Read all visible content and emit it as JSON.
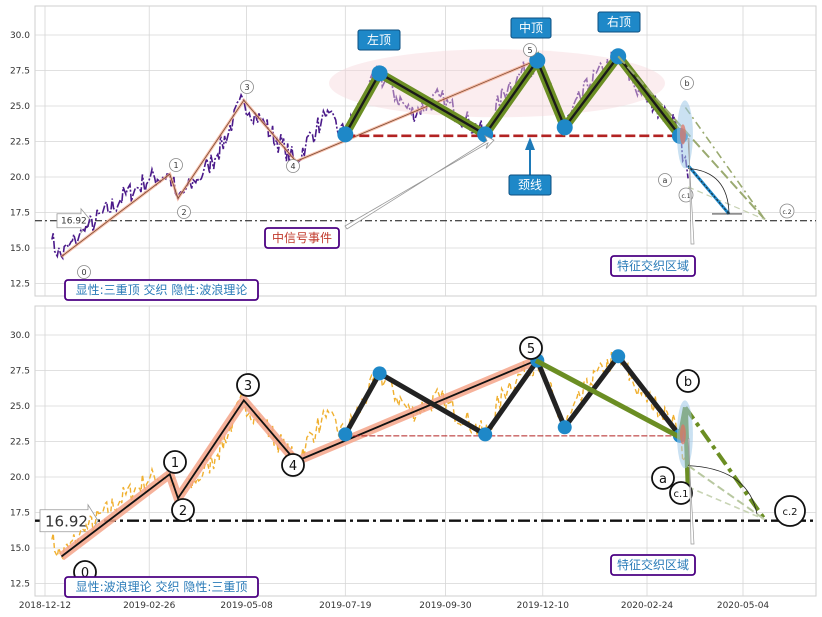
{
  "chart_data": [
    {
      "type": "line",
      "panel": "top",
      "ylim": [
        11.5,
        32
      ],
      "yticks": [
        "12.5",
        "15.0",
        "17.5",
        "20.0",
        "22.5",
        "25.0",
        "27.5",
        "30.0"
      ],
      "series": [],
      "wave_points": [
        {
          "label": "0",
          "date": "2018-12-24",
          "value": 14.4
        },
        {
          "label": "1",
          "date": "2019-03-13",
          "value": 20.2
        },
        {
          "label": "2",
          "date": "2019-03-19",
          "value": 18.5
        },
        {
          "label": "3",
          "date": "2019-05-06",
          "value": 25.4
        },
        {
          "label": "4",
          "date": "2019-06-13",
          "value": 21.1
        },
        {
          "label": "5",
          "date": "2019-12-05",
          "value": 28.2
        },
        {
          "label": "a",
          "date": "2020-03-19",
          "value": 22.8
        },
        {
          "label": "b",
          "date": "2020-03-23",
          "value": 24.9
        },
        {
          "label": "c.1",
          "date": "2020-03-25",
          "value": 19.3
        },
        {
          "label": "c.2",
          "date": "2020-05-20",
          "value": 17.0
        }
      ],
      "pattern_points": [
        {
          "date": "2019-07-19",
          "value": 23.0
        },
        {
          "date": "2019-08-13",
          "value": 27.3
        },
        {
          "date": "2019-10-29",
          "value": 23.0
        },
        {
          "date": "2019-12-06",
          "value": 28.2
        },
        {
          "date": "2019-12-26",
          "value": 23.5
        },
        {
          "date": "2020-02-03",
          "value": 28.5
        },
        {
          "date": "2020-03-19",
          "value": 22.9
        }
      ],
      "neckline": 22.9,
      "reference_line": {
        "value": 16.92,
        "label": "16.92"
      },
      "annotations": {
        "left_top": "左顶",
        "mid_top": "中顶",
        "right_top": "右顶",
        "neckline": "颈线",
        "mid_signal": "中信号事件",
        "feature_zone": "特征交织区域",
        "legend_box": "显性:三重顶 交织 隐性:波浪理论"
      }
    },
    {
      "type": "line",
      "panel": "bottom",
      "ylim": [
        11.5,
        32
      ],
      "yticks": [
        "12.5",
        "15.0",
        "17.5",
        "20.0",
        "22.5",
        "25.0",
        "27.5",
        "30.0"
      ],
      "xticks": [
        "2018-12-12",
        "2019-02-26",
        "2019-05-08",
        "2019-07-19",
        "2019-09-30",
        "2019-12-10",
        "2020-02-24",
        "2020-05-04"
      ],
      "reference_line": {
        "value": 16.92,
        "label": "16.92"
      },
      "annotations": {
        "feature_zone": "特征交织区域",
        "legend_box": "显性:波浪理论 交织 隐性:三重顶"
      }
    }
  ],
  "colors": {
    "price_top": "#4b1a8a",
    "price_bottom": "#f0b030",
    "wave_band": "#f4a58a",
    "pattern_green": "#6b8e23",
    "pattern_dark": "#222222",
    "node_blue": "#1e88c8",
    "neckline_red": "#b22222",
    "callout_blue": "#1e88c8",
    "box_border": "#4b0082"
  }
}
